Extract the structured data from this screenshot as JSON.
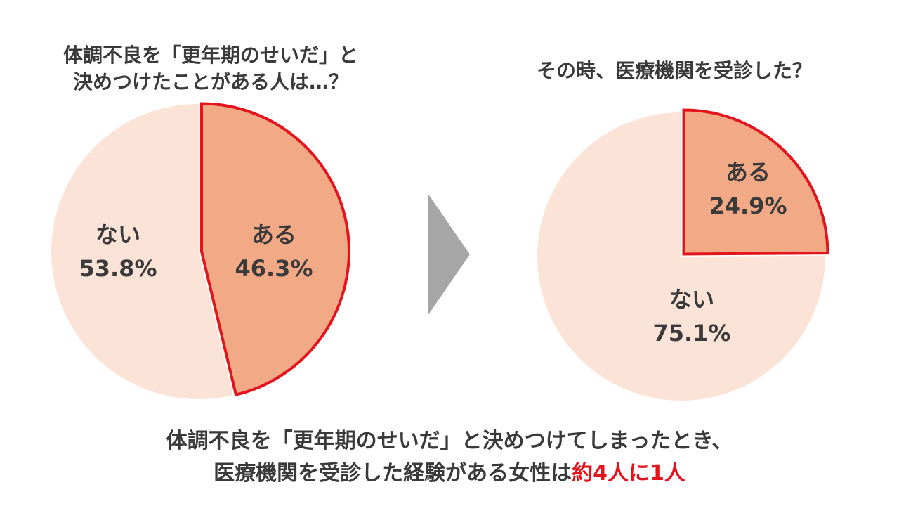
{
  "chart_data": [
    {
      "type": "pie",
      "title_lines": [
        "体調不良を「更年期のせいだ」と",
        "決めつけたことがある人は…？"
      ],
      "slices": [
        {
          "name": "ある",
          "value": 46.3,
          "label": "46.3%",
          "highlighted": true
        },
        {
          "name": "ない",
          "value": 53.8,
          "label": "53.8%",
          "highlighted": false
        }
      ]
    },
    {
      "type": "pie",
      "title_lines": [
        "その時、医療機関を受診した？"
      ],
      "slices": [
        {
          "name": "ある",
          "value": 24.9,
          "label": "24.9%",
          "highlighted": true
        },
        {
          "name": "ない",
          "value": 75.1,
          "label": "75.1%",
          "highlighted": false
        }
      ]
    }
  ],
  "caption": {
    "line1": "体調不良を「更年期のせいだ」と決めつけてしまったとき、",
    "line2_prefix": "医療機関を受診した経験がある女性は",
    "line2_highlight": "約4人に1人"
  },
  "colors": {
    "highlight_fill": "#f2aa86",
    "highlight_stroke": "#e3141b",
    "base_fill": "#fbe3d8",
    "arrow": "#a6a6a6",
    "text": "#3a3a3a",
    "caption_highlight": "#e3141b"
  },
  "arrow_icon": "chevron-right-icon"
}
